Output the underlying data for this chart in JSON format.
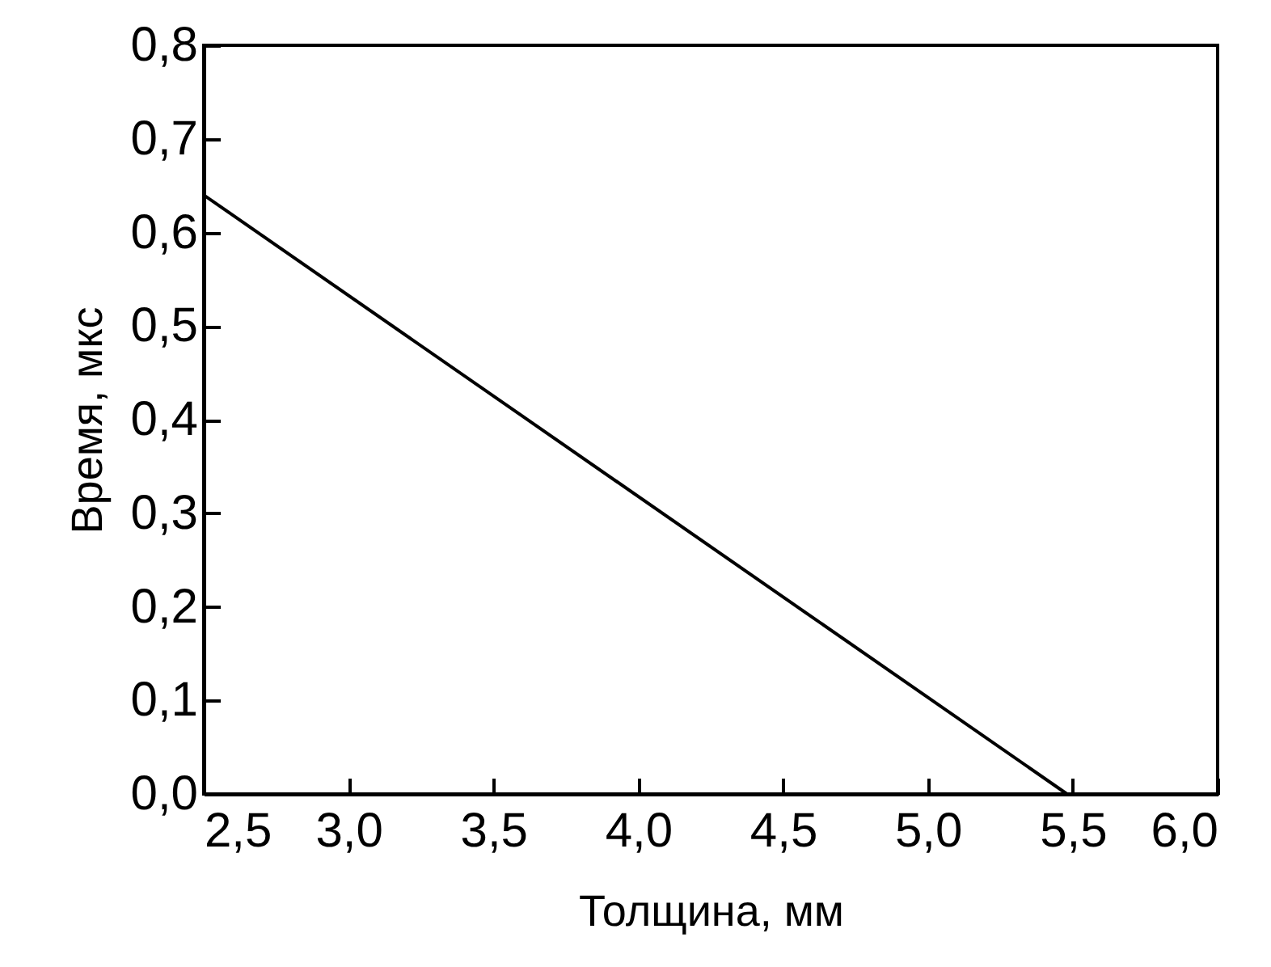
{
  "chart_data": {
    "type": "line",
    "xlabel": "Толщина, мм",
    "ylabel": "Время, мкс",
    "x": [
      2.5,
      5.48
    ],
    "series": [
      {
        "color": "#000000",
        "values": [
          0.64,
          0
        ]
      }
    ],
    "xlim": [
      2.5,
      6.0
    ],
    "xticks": [
      {
        "value": 2.5,
        "label": "2,5"
      },
      {
        "value": 3.0,
        "label": "3,0"
      },
      {
        "value": 3.5,
        "label": "3,5"
      },
      {
        "value": 4.0,
        "label": "4,0"
      },
      {
        "value": 4.5,
        "label": "4,5"
      },
      {
        "value": 5.0,
        "label": "5,0"
      },
      {
        "value": 5.5,
        "label": "5,5"
      },
      {
        "value": 6.0,
        "label": "6,0"
      }
    ],
    "ylim": [
      0,
      0.8
    ],
    "yticks": [
      {
        "value": 0,
        "label": "0,0"
      },
      {
        "value": 0.1,
        "label": "0,1"
      },
      {
        "value": 0.2,
        "label": "0,2"
      },
      {
        "value": 0.3,
        "label": "0,3"
      },
      {
        "value": 0.4,
        "label": "0,4"
      },
      {
        "value": 0.5,
        "label": "0,5"
      },
      {
        "value": 0.6,
        "label": "0,6"
      },
      {
        "value": 0.7,
        "label": "0,7"
      },
      {
        "value": 0.8,
        "label": "0,8"
      }
    ],
    "grid": false,
    "line_style": "solid"
  }
}
